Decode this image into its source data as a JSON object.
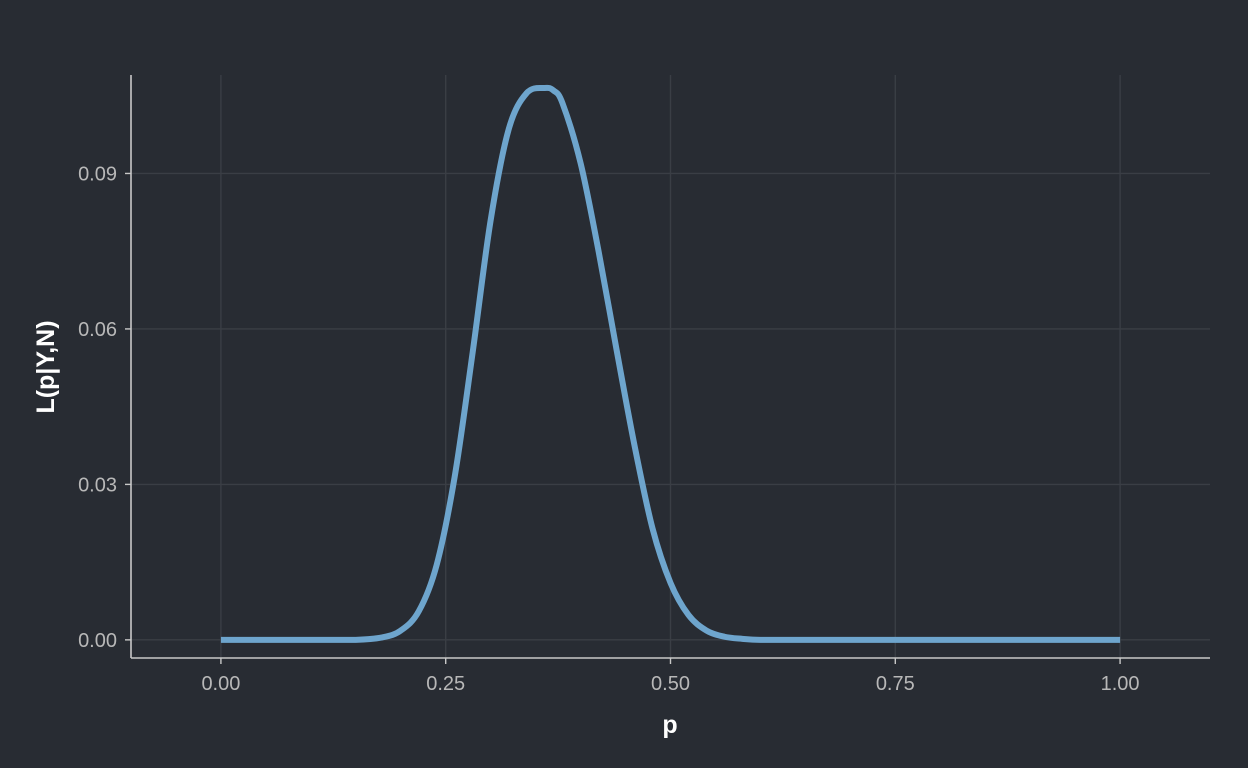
{
  "chart_data": {
    "type": "line",
    "title": "",
    "xlabel": "p",
    "ylabel": "L(p|Y,N)",
    "xlim": [
      -0.1,
      1.1
    ],
    "ylim": [
      -0.0035,
      0.109
    ],
    "x_ticks": [
      0.0,
      0.25,
      0.5,
      0.75,
      1.0
    ],
    "x_tick_labels": [
      "0.00",
      "0.25",
      "0.50",
      "0.75",
      "1.00"
    ],
    "y_ticks": [
      0.0,
      0.03,
      0.06,
      0.09
    ],
    "y_tick_labels": [
      "0.00",
      "0.03",
      "0.06",
      "0.09"
    ],
    "grid": true,
    "legend": "none",
    "colors": {
      "background": "#282c33",
      "grid": "#3a3e45",
      "axis": "#c8c8c8",
      "line": "#6ea5cd"
    },
    "series": [
      {
        "x": [
          0.0,
          0.05,
          0.1,
          0.15,
          0.18,
          0.2,
          0.22,
          0.24,
          0.26,
          0.28,
          0.3,
          0.32,
          0.34,
          0.36,
          0.37,
          0.38,
          0.4,
          0.42,
          0.44,
          0.46,
          0.48,
          0.5,
          0.52,
          0.54,
          0.56,
          0.58,
          0.6,
          0.65,
          0.7,
          0.8,
          0.9,
          1.0
        ],
        "y": [
          0.0,
          0.0,
          0.0,
          0.0,
          0.0005,
          0.0018,
          0.0055,
          0.0145,
          0.0315,
          0.0555,
          0.081,
          0.0985,
          0.1055,
          0.1065,
          0.106,
          0.1035,
          0.092,
          0.075,
          0.056,
          0.0375,
          0.0215,
          0.011,
          0.0048,
          0.0018,
          0.0006,
          0.0002,
          0.0,
          0.0,
          0.0,
          0.0,
          0.0,
          0.0
        ]
      }
    ]
  }
}
